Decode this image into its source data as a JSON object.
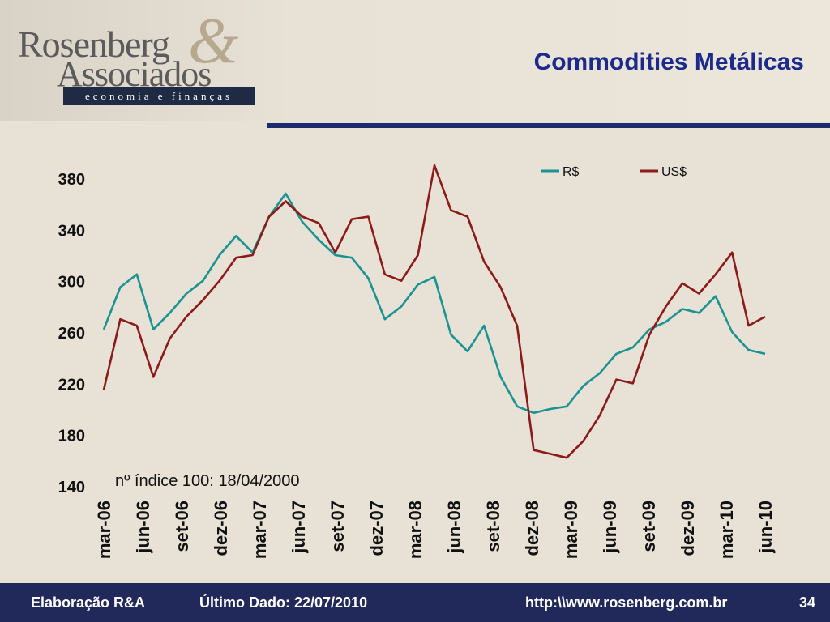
{
  "header": {
    "logo_line1": "Rosenberg",
    "logo_line2": "Associados",
    "logo_amp": "&",
    "logo_tagline": "economia e finanças",
    "title": "Commodities Metálicas"
  },
  "footer": {
    "author": "Elaboração R&A",
    "last_data": "Último Dado: 22/07/2010",
    "url": "http:\\\\www.rosenberg.com.br",
    "page": "34"
  },
  "colors": {
    "rs": "#1a9393",
    "usd": "#8b1a1a",
    "title": "#1c2a8c",
    "footer_bg": "#20295a"
  },
  "chart_data": {
    "type": "line",
    "title": "",
    "xlabel": "",
    "ylabel": "",
    "ylim": [
      140,
      380
    ],
    "yticks": [
      140,
      180,
      220,
      260,
      300,
      340,
      380
    ],
    "x_tick_labels": [
      "mar-06",
      "jun-06",
      "set-06",
      "dez-06",
      "mar-07",
      "jun-07",
      "set-07",
      "dez-07",
      "mar-08",
      "jun-08",
      "set-08",
      "dez-08",
      "mar-09",
      "jun-09",
      "set-09",
      "dez-09",
      "mar-10",
      "jun-10"
    ],
    "annotation": "nº índice 100: 18/04/2000",
    "legend_position": "top-right",
    "grid": false,
    "series": [
      {
        "name": "R$",
        "color": "#1a9393",
        "values": [
          262,
          295,
          305,
          262,
          275,
          290,
          300,
          320,
          335,
          322,
          350,
          368,
          346,
          332,
          320,
          318,
          302,
          270,
          280,
          297,
          303,
          258,
          245,
          265,
          225,
          202,
          197,
          200,
          202,
          218,
          228,
          243,
          248,
          262,
          268,
          278,
          275,
          288,
          260,
          246,
          243
        ]
      },
      {
        "name": "US$",
        "color": "#8b1a1a",
        "values": [
          215,
          270,
          265,
          225,
          255,
          272,
          285,
          300,
          318,
          320,
          350,
          362,
          350,
          345,
          322,
          348,
          350,
          305,
          300,
          320,
          390,
          355,
          350,
          315,
          295,
          265,
          168,
          165,
          162,
          175,
          195,
          223,
          220,
          258,
          280,
          298,
          290,
          305,
          322,
          265,
          272
        ]
      }
    ]
  }
}
